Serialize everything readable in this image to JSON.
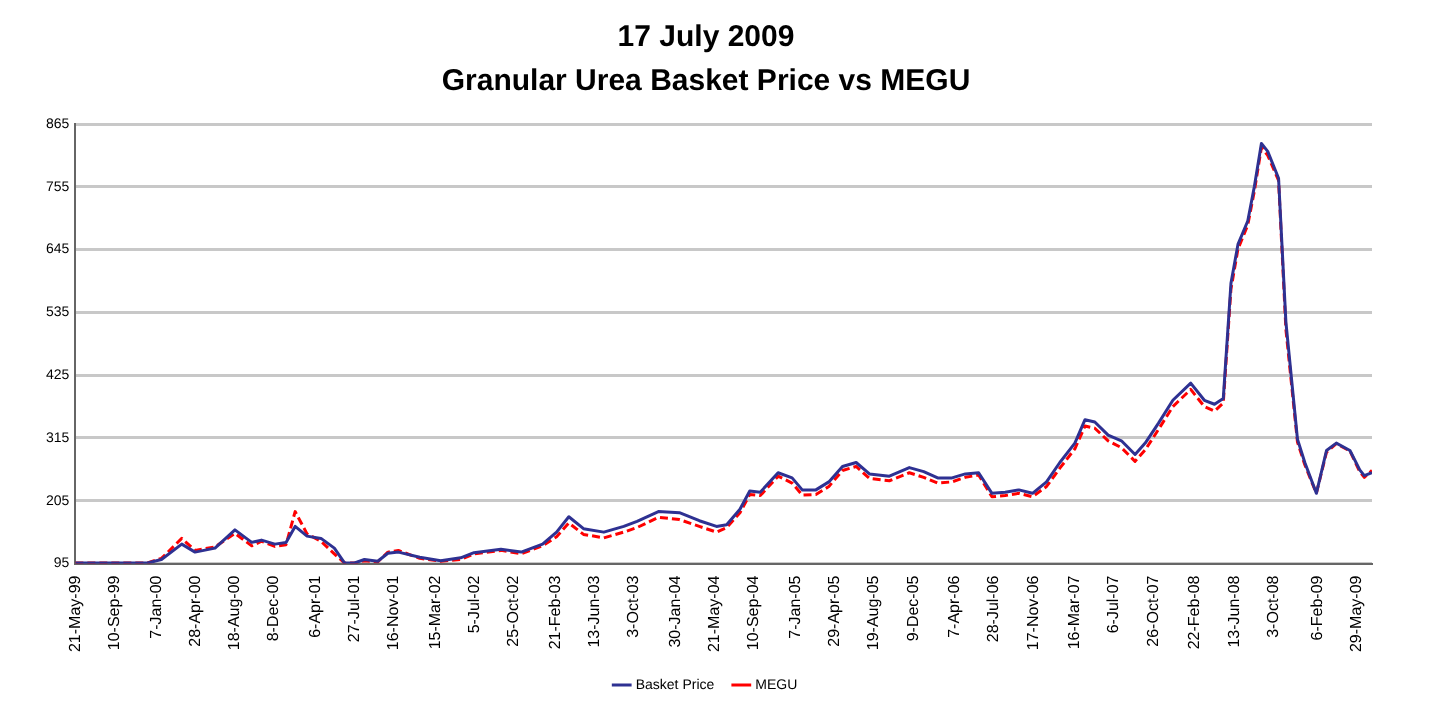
{
  "chart_data": {
    "type": "line",
    "title": "17 July 2009",
    "subtitle": "Granular Urea Basket Price vs MEGU",
    "x": [
      "1999-05-21",
      "1999-12-13",
      "2000-01-22",
      "2000-03-20",
      "2000-04-27",
      "2000-06-23",
      "2000-08-19",
      "2000-10-06",
      "2000-11-03",
      "2000-12-11",
      "2001-01-12",
      "2001-02-07",
      "2001-03-13",
      "2001-04-22",
      "2001-05-30",
      "2001-06-28",
      "2001-07-27",
      "2001-08-24",
      "2001-10-01",
      "2001-10-30",
      "2001-11-29",
      "2002-01-29",
      "2002-03-30",
      "2002-05-26",
      "2002-07-03",
      "2002-09-18",
      "2002-11-15",
      "2003-01-15",
      "2003-02-24",
      "2003-03-31",
      "2003-05-12",
      "2003-07-09",
      "2003-09-04",
      "2003-10-12",
      "2003-12-12",
      "2004-02-10",
      "2004-04-07",
      "2004-05-26",
      "2004-06-24",
      "2004-08-01",
      "2004-08-29",
      "2004-09-28",
      "2004-11-18",
      "2004-12-28",
      "2005-01-26",
      "2005-03-06",
      "2005-04-12",
      "2005-05-21",
      "2005-06-29",
      "2005-08-06",
      "2005-10-02",
      "2005-11-28",
      "2006-01-08",
      "2006-02-17",
      "2006-03-30",
      "2006-05-07",
      "2006-06-14",
      "2006-07-22",
      "2006-08-29",
      "2006-10-07",
      "2006-11-15",
      "2006-12-25",
      "2007-02-01",
      "2007-03-16",
      "2007-04-14",
      "2007-05-12",
      "2007-06-19",
      "2007-07-27",
      "2007-09-04",
      "2007-10-03",
      "2007-11-10",
      "2007-12-21",
      "2008-02-10",
      "2008-03-20",
      "2008-04-18",
      "2008-05-13",
      "2008-06-04",
      "2008-06-24",
      "2008-07-22",
      "2008-08-10",
      "2008-08-30",
      "2008-09-17",
      "2008-10-18",
      "2008-11-08",
      "2008-12-11",
      "2009-01-01",
      "2009-02-03",
      "2009-03-04",
      "2009-04-01",
      "2009-05-10",
      "2009-06-07",
      "2009-06-20",
      "2009-07-12"
    ],
    "series": [
      {
        "name": "Basket Price",
        "color": "#2e3192",
        "line_style": "solid",
        "values": [
          96,
          96,
          102,
          129,
          115,
          122,
          154,
          132,
          136,
          129,
          132,
          160,
          143,
          139,
          122,
          96,
          96,
          102,
          99,
          113,
          115,
          106,
          100,
          105,
          114,
          120,
          115,
          129,
          150,
          177,
          156,
          150,
          160,
          169,
          186,
          184,
          170,
          160,
          163,
          190,
          222,
          220,
          254,
          245,
          224,
          224,
          238,
          265,
          272,
          252,
          248,
          263,
          256,
          245,
          245,
          252,
          254,
          218,
          220,
          224,
          218,
          238,
          272,
          306,
          347,
          343,
          320,
          310,
          286,
          306,
          341,
          381,
          411,
          381,
          374,
          384,
          586,
          654,
          695,
          756,
          831,
          817,
          770,
          518,
          313,
          272,
          218,
          293,
          306,
          293,
          259,
          249,
          254
        ]
      },
      {
        "name": "MEGU",
        "color": "#ff0000",
        "line_style": "dashed",
        "values": [
          96,
          96,
          104,
          139,
          118,
          124,
          148,
          126,
          134,
          125,
          128,
          186,
          147,
          134,
          112,
          96,
          96,
          100,
          98,
          115,
          118,
          104,
          99,
          102,
          112,
          118,
          112,
          126,
          142,
          166,
          146,
          140,
          150,
          158,
          176,
          172,
          160,
          150,
          158,
          184,
          216,
          214,
          248,
          236,
          215,
          216,
          230,
          258,
          265,
          244,
          240,
          254,
          246,
          236,
          238,
          246,
          250,
          212,
          214,
          218,
          212,
          230,
          262,
          296,
          336,
          332,
          310,
          298,
          274,
          294,
          330,
          370,
          400,
          370,
          362,
          376,
          576,
          646,
          688,
          748,
          824,
          810,
          766,
          505,
          308,
          268,
          218,
          290,
          305,
          292,
          256,
          246,
          258
        ]
      }
    ],
    "xlim": [
      "1999-05-21",
      "2009-07-12"
    ],
    "xticks": [
      {
        "value": "1999-05-21",
        "label": "21-May-99"
      },
      {
        "value": "1999-09-10",
        "label": "10-Sep-99"
      },
      {
        "value": "2000-01-07",
        "label": "7-Jan-00"
      },
      {
        "value": "2000-04-28",
        "label": "28-Apr-00"
      },
      {
        "value": "2000-08-18",
        "label": "18-Aug-00"
      },
      {
        "value": "2000-12-08",
        "label": "8-Dec-00"
      },
      {
        "value": "2001-04-06",
        "label": "6-Apr-01"
      },
      {
        "value": "2001-07-27",
        "label": "27-Jul-01"
      },
      {
        "value": "2001-11-16",
        "label": "16-Nov-01"
      },
      {
        "value": "2002-03-15",
        "label": "15-Mar-02"
      },
      {
        "value": "2002-07-05",
        "label": "5-Jul-02"
      },
      {
        "value": "2002-10-25",
        "label": "25-Oct-02"
      },
      {
        "value": "2003-02-21",
        "label": "21-Feb-03"
      },
      {
        "value": "2003-06-13",
        "label": "13-Jun-03"
      },
      {
        "value": "2003-10-03",
        "label": "3-Oct-03"
      },
      {
        "value": "2004-01-30",
        "label": "30-Jan-04"
      },
      {
        "value": "2004-05-21",
        "label": "21-May-04"
      },
      {
        "value": "2004-09-10",
        "label": "10-Sep-04"
      },
      {
        "value": "2005-01-07",
        "label": "7-Jan-05"
      },
      {
        "value": "2005-04-29",
        "label": "29-Apr-05"
      },
      {
        "value": "2005-08-19",
        "label": "19-Aug-05"
      },
      {
        "value": "2005-12-09",
        "label": "9-Dec-05"
      },
      {
        "value": "2006-04-07",
        "label": "7-Apr-06"
      },
      {
        "value": "2006-07-28",
        "label": "28-Jul-06"
      },
      {
        "value": "2006-11-17",
        "label": "17-Nov-06"
      },
      {
        "value": "2007-03-16",
        "label": "16-Mar-07"
      },
      {
        "value": "2007-07-06",
        "label": "6-Jul-07"
      },
      {
        "value": "2007-10-26",
        "label": "26-Oct-07"
      },
      {
        "value": "2008-02-22",
        "label": "22-Feb-08"
      },
      {
        "value": "2008-06-13",
        "label": "13-Jun-08"
      },
      {
        "value": "2008-10-03",
        "label": "3-Oct-08"
      },
      {
        "value": "2009-02-06",
        "label": "6-Feb-09"
      },
      {
        "value": "2009-05-29",
        "label": "29-May-09"
      }
    ],
    "ylim": [
      95,
      865
    ],
    "yticks": [
      95,
      205,
      315,
      425,
      535,
      645,
      755,
      865
    ],
    "grid": "y",
    "legend": "bottom",
    "marker": "none"
  }
}
